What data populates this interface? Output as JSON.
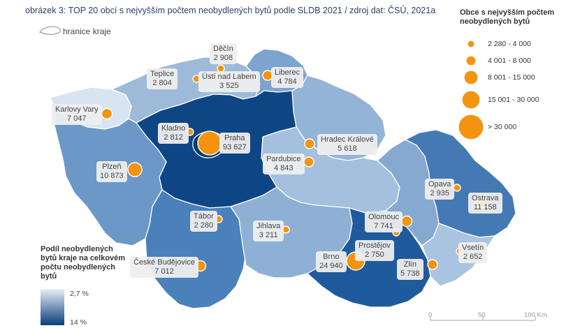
{
  "title": "obrázek 3: TOP 20 obcí s nejvyšším počtem neobydlených bytů podle SLDB 2021 / zdroj dat: ČSÚ, 2021a",
  "border_legend": "hranice kraje",
  "size_legend": {
    "title": "Obce s nejvyšším počtem neobydlených bytů",
    "items": [
      "2 280 - 4 000",
      "4 001 - 8 000",
      "8 001 - 15 000",
      "15 001 - 30 000",
      "> 30 000"
    ]
  },
  "color_legend": {
    "title": "Podíl neobydlených bytů kraje na celkovém počtu neobydlených bytů",
    "min": "2,7 %",
    "max": "14 %",
    "color_min": "#e6eef7",
    "color_max": "#083e7a"
  },
  "scale": {
    "labels": [
      "0",
      "50",
      "100 Km"
    ]
  },
  "circle_color": "#f2940f",
  "cities": [
    {
      "name": "Děčín",
      "value": "2 908"
    },
    {
      "name": "Teplice",
      "value": "2 804"
    },
    {
      "name": "Ústí nad Labem",
      "value": "3 525"
    },
    {
      "name": "Liberec",
      "value": "4 784"
    },
    {
      "name": "Karlovy Vary",
      "value": "7 047"
    },
    {
      "name": "Kladno",
      "value": "2 812"
    },
    {
      "name": "Praha",
      "value": "93 627"
    },
    {
      "name": "Hradec Králové",
      "value": "5 618"
    },
    {
      "name": "Pardubice",
      "value": "4 843"
    },
    {
      "name": "Plzeň",
      "value": "10 873"
    },
    {
      "name": "Opava",
      "value": "2 935"
    },
    {
      "name": "Ostrava",
      "value": "11 158"
    },
    {
      "name": "Tábor",
      "value": "2 280"
    },
    {
      "name": "Olomouc",
      "value": "7 741"
    },
    {
      "name": "Jihlava",
      "value": "3 211"
    },
    {
      "name": "Prostějov",
      "value": "2 750"
    },
    {
      "name": "Vsetín",
      "value": "2 652"
    },
    {
      "name": "České Budějovice",
      "value": "7 012"
    },
    {
      "name": "Brno",
      "value": "24 940"
    },
    {
      "name": "Zlín",
      "value": "5 738"
    }
  ]
}
